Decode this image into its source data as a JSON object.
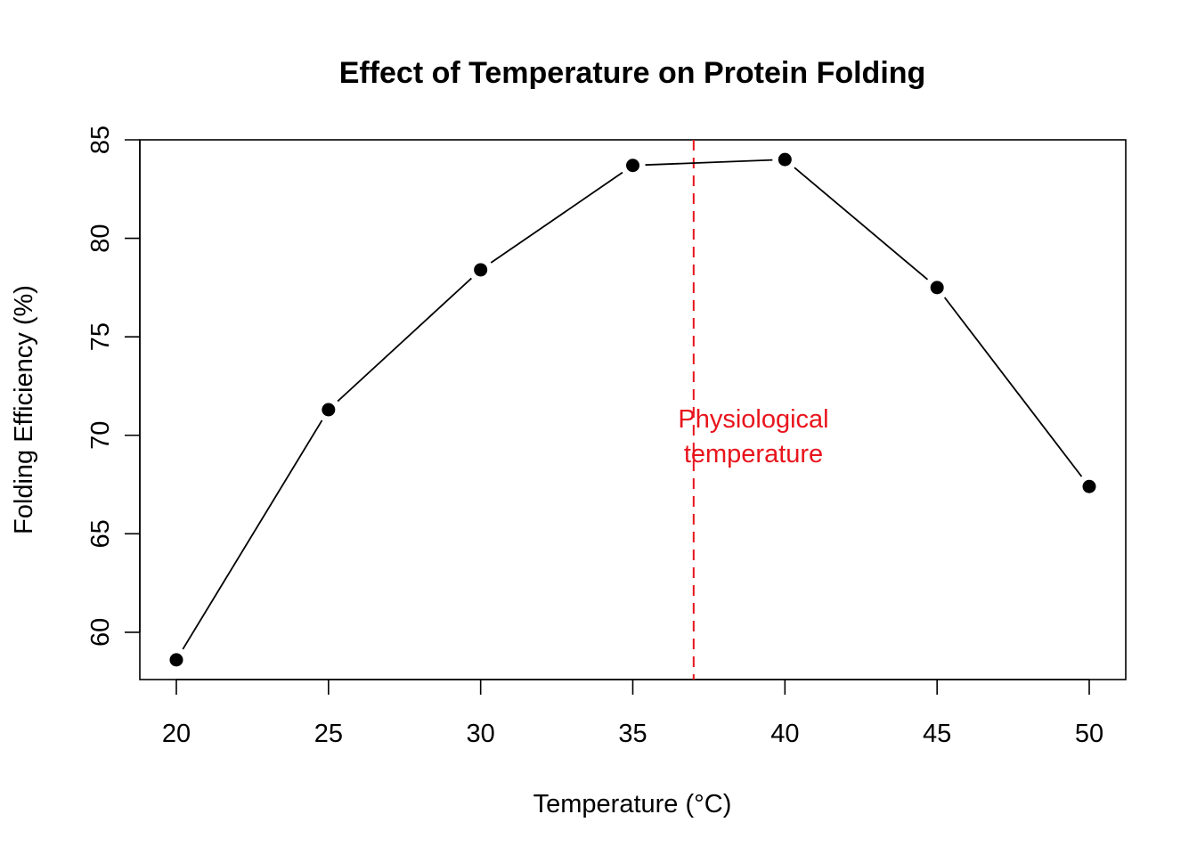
{
  "chart_data": {
    "type": "line",
    "title": "Effect of Temperature on Protein Folding",
    "xlabel": "Temperature (°C)",
    "ylabel": "Folding Efficiency (%)",
    "x": [
      20,
      25,
      30,
      35,
      40,
      45,
      50
    ],
    "y": [
      58.6,
      71.3,
      78.4,
      83.7,
      84.0,
      77.5,
      67.4
    ],
    "xlim": [
      18.8,
      51.2
    ],
    "ylim": [
      57.6,
      85.0
    ],
    "xticks": [
      "20",
      "25",
      "30",
      "35",
      "40",
      "45",
      "50"
    ],
    "yticks": [
      "60",
      "65",
      "70",
      "75",
      "80",
      "85"
    ],
    "grid": false,
    "reference_line": {
      "x": 37,
      "color": "#e8141c",
      "style": "dashed",
      "label_lines": [
        "Physiological",
        "temperature"
      ]
    },
    "line_color": "#000000",
    "point_color": "#000000"
  }
}
